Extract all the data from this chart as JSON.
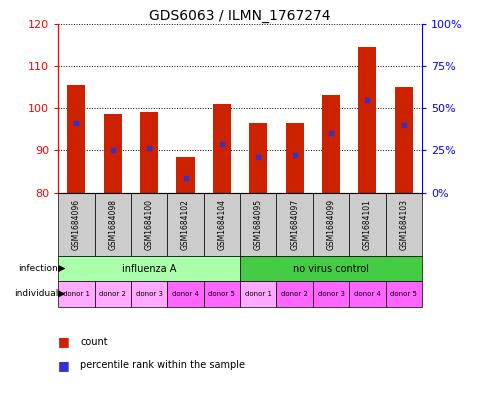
{
  "title": "GDS6063 / ILMN_1767274",
  "samples": [
    "GSM1684096",
    "GSM1684098",
    "GSM1684100",
    "GSM1684102",
    "GSM1684104",
    "GSM1684095",
    "GSM1684097",
    "GSM1684099",
    "GSM1684101",
    "GSM1684103"
  ],
  "bar_bottoms": [
    80,
    80,
    80,
    80,
    80,
    80,
    80,
    80,
    80,
    80
  ],
  "bar_tops": [
    105.5,
    98.5,
    99,
    88.5,
    101,
    96.5,
    96.5,
    103,
    114.5,
    105
  ],
  "blue_vals": [
    96.5,
    90.0,
    90.5,
    83.5,
    91.5,
    88.5,
    89.0,
    94.0,
    102.0,
    96.0
  ],
  "ymin": 80,
  "ymax": 120,
  "yticks": [
    80,
    90,
    100,
    110,
    120
  ],
  "y2min": 0,
  "y2max": 100,
  "y2ticks": [
    0,
    25,
    50,
    75,
    100
  ],
  "y2ticklabels": [
    "0%",
    "25%",
    "50%",
    "75%",
    "100%"
  ],
  "bar_color": "#cc2200",
  "blue_color": "#3333cc",
  "grid_color": "#000000",
  "infection_groups": [
    {
      "label": "influenza A",
      "span": [
        0,
        5
      ],
      "color": "#aaffaa"
    },
    {
      "label": "no virus control",
      "span": [
        5,
        10
      ],
      "color": "#44cc44"
    }
  ],
  "donor_labels": [
    "donor 1",
    "donor 2",
    "donor 3",
    "donor 4",
    "donor 5",
    "donor 1",
    "donor 2",
    "donor 3",
    "donor 4",
    "donor 5"
  ],
  "donor_colors": [
    "#ffaaff",
    "#ffaaff",
    "#ffaaff",
    "#ff66ff",
    "#ff66ff",
    "#ffaaff",
    "#ff66ff",
    "#ff66ff",
    "#ff66ff",
    "#ff66ff"
  ],
  "bg_color": "#ffffff",
  "bar_width": 0.5
}
